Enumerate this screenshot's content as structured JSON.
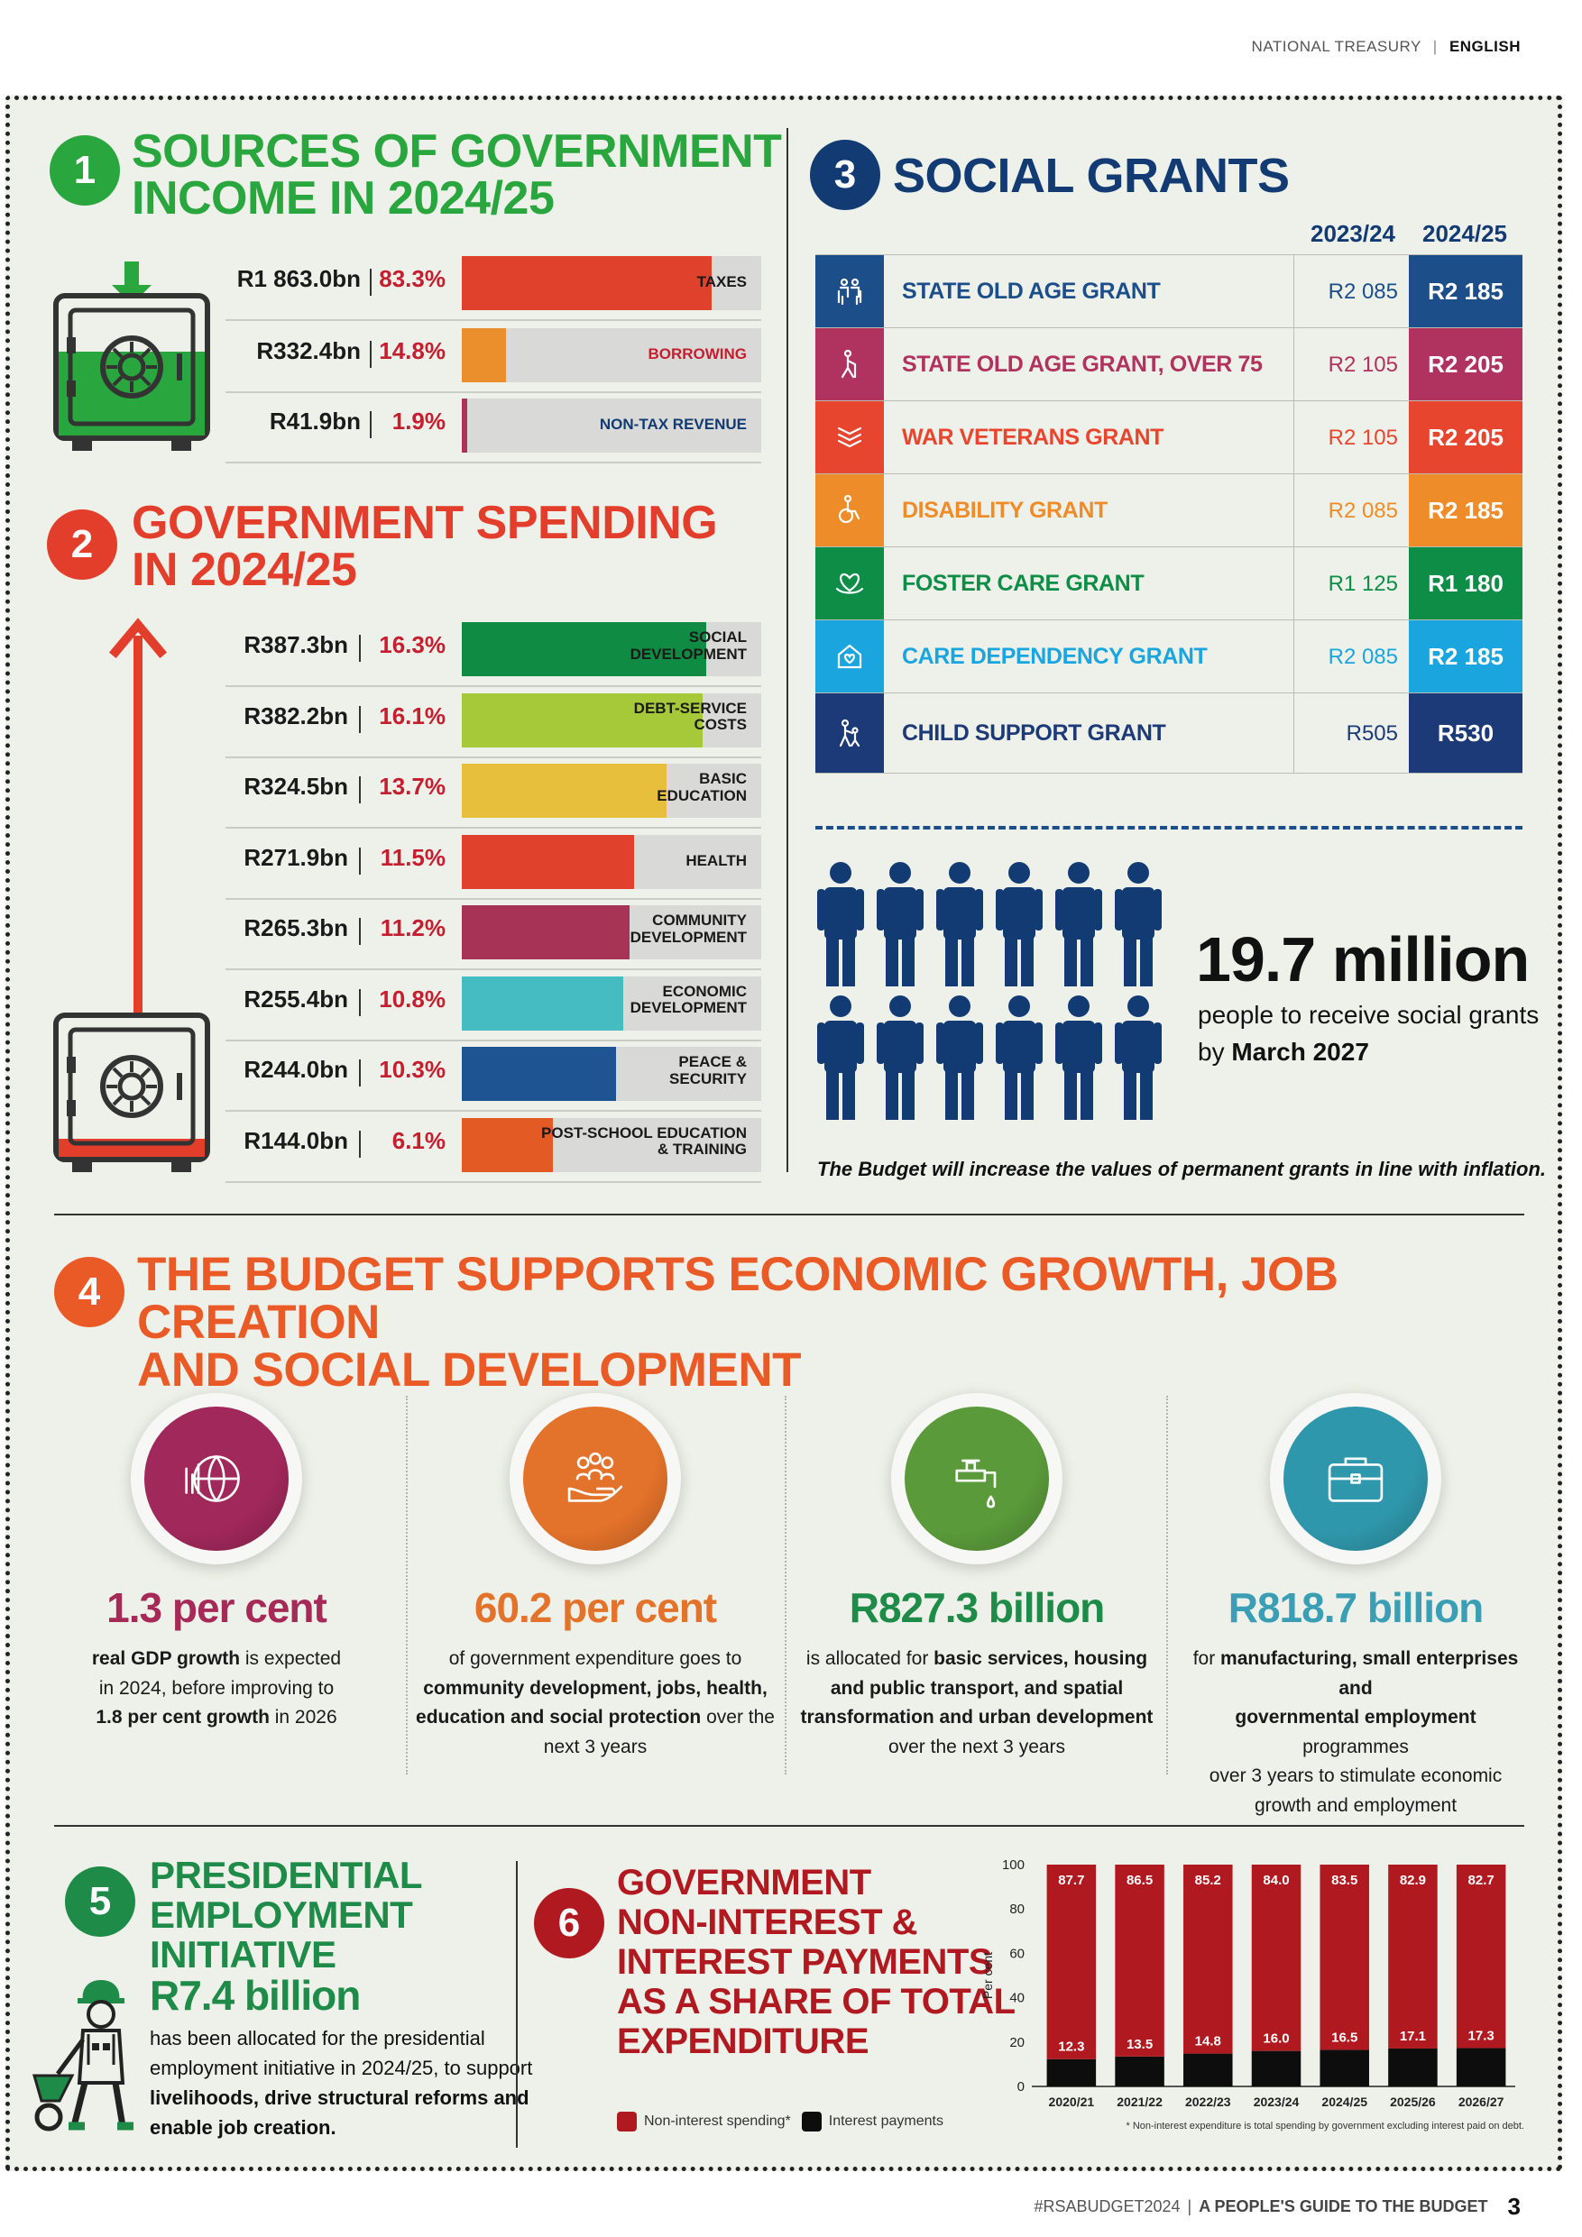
{
  "header": {
    "publisher": "NATIONAL TREASURY",
    "separator": "|",
    "language": "ENGLISH"
  },
  "footer": {
    "hashtag": "#RSABUDGET2024",
    "separator": "|",
    "guide": "A PEOPLE'S GUIDE TO THE BUDGET",
    "page": "3"
  },
  "s1": {
    "number": "1",
    "title_line1": "SOURCES OF GOVERNMENT",
    "title_line2": "INCOME IN 2024/25",
    "rows": [
      {
        "amount": "R1 863.0bn",
        "share": "83.3%",
        "label": "TAXES",
        "pct": 83.3,
        "color": "#e0412d"
      },
      {
        "amount": "R332.4bn",
        "share": "14.8%",
        "label": "BORROWING",
        "pct": 14.8,
        "color": "#ea8f2c"
      },
      {
        "amount": "R41.9bn",
        "share": "1.9%",
        "label": "NON-TAX REVENUE",
        "pct": 1.9,
        "color": "#b0315b"
      }
    ]
  },
  "s2": {
    "number": "2",
    "title_line1": "GOVERNMENT SPENDING",
    "title_line2": "IN 2024/25",
    "rows": [
      {
        "amount": "R387.3bn",
        "share": "16.3%",
        "label1": "SOCIAL",
        "label2": "DEVELOPMENT",
        "pct": 16.3,
        "color": "#0f8b43"
      },
      {
        "amount": "R382.2bn",
        "share": "16.1%",
        "label1": "DEBT-SERVICE",
        "label2": "COSTS",
        "pct": 16.1,
        "color": "#a6c93a"
      },
      {
        "amount": "R324.5bn",
        "share": "13.7%",
        "label1": "BASIC",
        "label2": "EDUCATION",
        "pct": 13.7,
        "color": "#e8bf3c"
      },
      {
        "amount": "R271.9bn",
        "share": "11.5%",
        "label1": "HEALTH",
        "label2": "",
        "pct": 11.5,
        "color": "#e0412d"
      },
      {
        "amount": "R265.3bn",
        "share": "11.2%",
        "label1": "COMMUNITY",
        "label2": "DEVELOPMENT",
        "pct": 11.2,
        "color": "#a73357"
      },
      {
        "amount": "R255.4bn",
        "share": "10.8%",
        "label1": "ECONOMIC",
        "label2": "DEVELOPMENT",
        "pct": 10.8,
        "color": "#45bcc2"
      },
      {
        "amount": "R244.0bn",
        "share": "10.3%",
        "label1": "PEACE &",
        "label2": "SECURITY",
        "pct": 10.3,
        "color": "#1f5493"
      },
      {
        "amount": "R144.0bn",
        "share": "6.1%",
        "label1": "POST-SCHOOL EDUCATION",
        "label2": "& TRAINING",
        "pct": 6.1,
        "color": "#e35a24"
      }
    ]
  },
  "s3": {
    "number": "3",
    "title": "SOCIAL GRANTS",
    "col1": "2023/24",
    "col2": "2024/25",
    "grants": [
      {
        "name": "STATE OLD AGE GRANT",
        "v1": "R2 085",
        "v2": "R2 185",
        "color": "#1c4f8a",
        "icon": "elderly-couple-icon"
      },
      {
        "name": "STATE OLD AGE GRANT, OVER 75",
        "v1": "R2 105",
        "v2": "R2 205",
        "color": "#b0325e",
        "icon": "elderly-person-icon"
      },
      {
        "name": "WAR VETERANS GRANT",
        "v1": "R2 105",
        "v2": "R2 205",
        "color": "#e8452f",
        "icon": "chevron-badge-icon"
      },
      {
        "name": "DISABILITY GRANT",
        "v1": "R2 085",
        "v2": "R2 185",
        "color": "#ef8c2a",
        "icon": "wheelchair-icon"
      },
      {
        "name": "FOSTER CARE GRANT",
        "v1": "R1 125",
        "v2": "R1 180",
        "color": "#0e8d47",
        "icon": "heart-hands-icon"
      },
      {
        "name": "CARE DEPENDENCY GRANT",
        "v1": "R2 085",
        "v2": "R2 185",
        "color": "#1aa5df",
        "icon": "house-heart-icon"
      },
      {
        "name": "CHILD SUPPORT GRANT",
        "v1": "R505",
        "v2": "R530",
        "color": "#1c3a78",
        "icon": "parent-child-icon"
      }
    ],
    "people_big": "19.7 million",
    "people_line1": "people to receive social grants",
    "people_line2_pre": "by ",
    "people_line2_bold": "March 2027",
    "note": "The Budget will increase the values of permanent grants in line with inflation."
  },
  "s4": {
    "number": "4",
    "title_line1": "THE BUDGET SUPPORTS ECONOMIC GROWTH, JOB CREATION",
    "title_line2": "AND SOCIAL DEVELOPMENT",
    "stats": [
      {
        "big": "1.3 per cent",
        "color": "#a52a58",
        "icon": "globe-chart-icon",
        "ball": "#a0285a",
        "d1": "real GDP growth",
        "d1b": true,
        "d1rest": " is expected",
        "d2": "in 2024, before improving to",
        "d3": "1.8 per cent growth",
        "d3rest": " in 2026",
        "d4": "",
        "d5": ""
      },
      {
        "big": "60.2 per cent",
        "color": "#e3722a",
        "icon": "community-hand-icon",
        "ball": "#e3722a",
        "d1": "of government expenditure goes to",
        "d1b": false,
        "d1rest": "",
        "d2": "community development, jobs, health,",
        "d3": "education and social protection",
        "d3rest": " over the",
        "d4": "next 3 years",
        "d5": ""
      },
      {
        "big": "R827.3 billion",
        "color": "#1e8b48",
        "icon": "water-tap-icon",
        "ball": "#5a9a3a",
        "d1": "is allocated for ",
        "d1b": false,
        "d1rest": "basic services, housing",
        "d2": "and public transport, and spatial",
        "d3": "transformation and urban development",
        "d3rest": "",
        "d4": "over the next 3 years",
        "d5": ""
      },
      {
        "big": "R818.7 billion",
        "color": "#3a9fb4",
        "icon": "briefcase-icon",
        "ball": "#2f97ab",
        "d1": "for ",
        "d1b": false,
        "d1rest": "manufacturing, small enterprises and",
        "d2": "governmental employment",
        "d3": " programmes",
        "d3rest": "",
        "d4": "over 3 years to stimulate economic",
        "d5": "growth and employment"
      }
    ]
  },
  "s5": {
    "number": "5",
    "title_line1": "PRESIDENTIAL",
    "title_line2": "EMPLOYMENT",
    "title_line3": "INITIATIVE",
    "big": "R7.4 billion",
    "line1": "has been allocated for the presidential",
    "line2": "employment initiative in 2024/25, to support",
    "line3": "livelihoods, drive structural reforms and",
    "line4": "enable job creation."
  },
  "s6": {
    "number": "6",
    "title_line1": "GOVERNMENT",
    "title_line2": "NON-INTEREST &",
    "title_line3": "INTEREST PAYMENTS",
    "title_line4": "AS A SHARE OF TOTAL",
    "title_line5": "EXPENDITURE",
    "legend_a": "Non-interest spending*",
    "legend_b": "Interest payments",
    "footnote": "* Non-interest expenditure is total spending by government excluding interest paid on debt."
  },
  "chart_data": {
    "type": "bar",
    "stacked": true,
    "categories": [
      "2020/21",
      "2021/22",
      "2022/23",
      "2023/24",
      "2024/25",
      "2025/26",
      "2026/27"
    ],
    "series": [
      {
        "name": "Interest payments",
        "values": [
          12.3,
          13.5,
          14.8,
          16.0,
          16.5,
          17.1,
          17.3
        ],
        "color": "#0d0d0d"
      },
      {
        "name": "Non-interest spending*",
        "values": [
          87.7,
          86.5,
          85.2,
          84.0,
          83.5,
          82.9,
          82.7
        ],
        "color": "#b01920"
      }
    ],
    "ylabel": "Per cent",
    "ylim": [
      0,
      100
    ],
    "yticks": [
      "0",
      "20",
      "40",
      "60",
      "80",
      "100"
    ]
  },
  "colors": {
    "green": "#2aa63f",
    "red": "#e23e2b",
    "navy": "#123a73",
    "orange": "#ea5a26",
    "darkred": "#b01920"
  }
}
